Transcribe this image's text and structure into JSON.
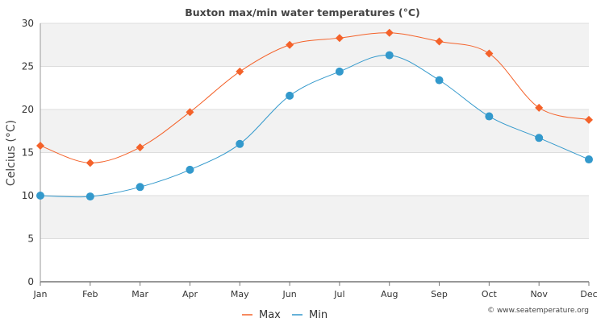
{
  "chart_data": {
    "type": "line",
    "title": "Buxton max/min water temperatures (°C)",
    "xlabel": "",
    "ylabel": "Celcius (°C)",
    "categories": [
      "Jan",
      "Feb",
      "Mar",
      "Apr",
      "May",
      "Jun",
      "Jul",
      "Aug",
      "Sep",
      "Oct",
      "Nov",
      "Dec"
    ],
    "ylim": [
      0,
      30
    ],
    "yticks": [
      0,
      5,
      10,
      15,
      20,
      25,
      30
    ],
    "grid": true,
    "legend": "bottom-center",
    "series": [
      {
        "name": "Max",
        "color": "#f4622a",
        "marker": "diamond",
        "values": [
          15.8,
          13.8,
          15.6,
          19.7,
          24.4,
          27.5,
          28.3,
          28.9,
          27.9,
          26.5,
          20.2,
          18.8
        ]
      },
      {
        "name": "Min",
        "color": "#3399cc",
        "marker": "circle",
        "values": [
          10.0,
          9.9,
          11.0,
          13.0,
          16.0,
          21.6,
          24.4,
          26.3,
          23.4,
          19.2,
          16.7,
          14.2
        ]
      }
    ]
  },
  "credit": "© www.seatemperature.org"
}
